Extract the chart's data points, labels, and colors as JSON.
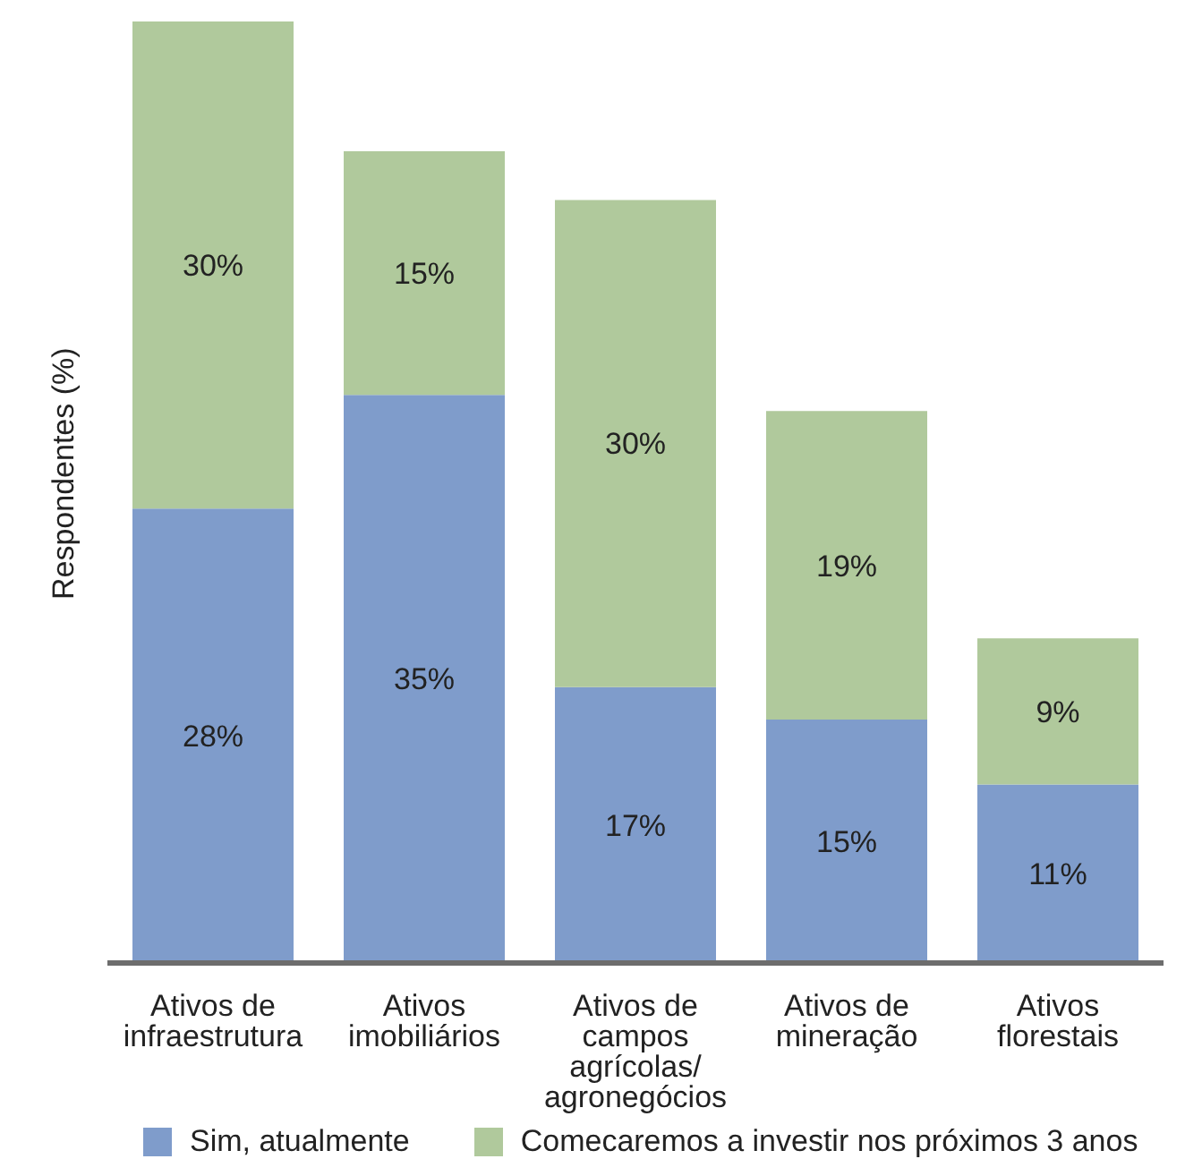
{
  "chart_data": {
    "type": "bar",
    "stacked": true,
    "ylabel": "Respondentes (%)",
    "legend": "bottom",
    "grid": false,
    "categories": [
      "Ativos de\ninfraestrutura",
      "Ativos\nimobiliários",
      "Ativos de\ncampos\nagrícolas/\nagronegócios",
      "Ativos de\nmineração",
      "Ativos\nflorestais"
    ],
    "series": [
      {
        "name": "Sim, atualmente",
        "color": "#7f9ccb",
        "values": [
          28,
          35,
          17,
          15,
          11
        ],
        "value_labels": [
          "28%",
          "35%",
          "17%",
          "15%",
          "11%"
        ]
      },
      {
        "name": "Comecaremos a investir nos próximos 3 anos",
        "color": "#b0c99c",
        "values": [
          30,
          15,
          30,
          19,
          9
        ],
        "value_labels": [
          "30%",
          "15%",
          "30%",
          "19%",
          "9%"
        ]
      }
    ]
  }
}
